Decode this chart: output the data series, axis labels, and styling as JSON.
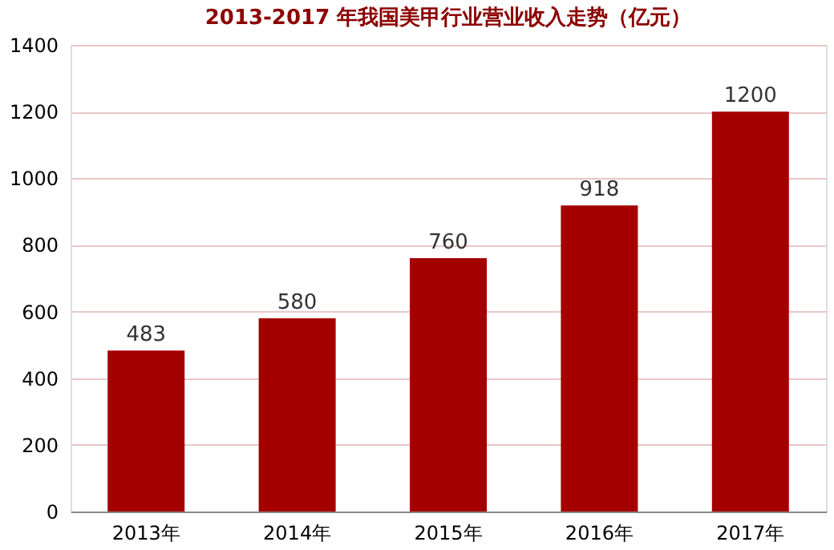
{
  "chart_data": {
    "type": "bar",
    "title": "2013-2017 年我国美甲行业营业收入走势（亿元）",
    "categories": [
      "2013年",
      "2014年",
      "2015年",
      "2016年",
      "2017年"
    ],
    "values": [
      483,
      580,
      760,
      918,
      1200
    ],
    "color": "#a50000",
    "ylim": [
      0,
      1400
    ],
    "yticks": [
      0,
      200,
      400,
      600,
      800,
      1000,
      1200,
      1400
    ],
    "grid": "y",
    "data_labels": true
  }
}
